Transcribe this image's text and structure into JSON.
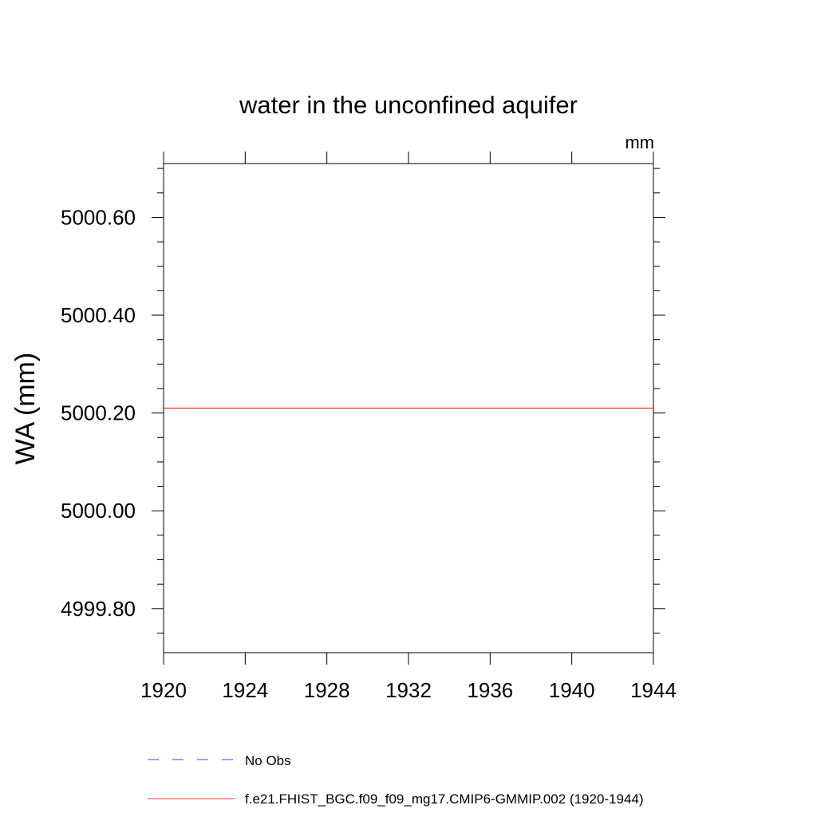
{
  "chart_data": {
    "type": "line",
    "title": "water in the unconfined aquifer",
    "units_label": "mm",
    "ylabel": "WA  (mm)",
    "xlabel": "",
    "xlim": [
      1920,
      1944
    ],
    "ylim": [
      4999.71,
      5000.71
    ],
    "x_ticks": [
      1920,
      1924,
      1928,
      1932,
      1936,
      1940,
      1944
    ],
    "x_tick_labels": [
      "1920",
      "1924",
      "1928",
      "1932",
      "1936",
      "1940",
      "1944"
    ],
    "y_ticks": [
      4999.8,
      5000.0,
      5000.2,
      5000.4,
      5000.6
    ],
    "y_tick_labels": [
      "4999.80",
      "5000.00",
      "5000.20",
      "5000.40",
      "5000.60"
    ],
    "y_minor_step": 0.05,
    "grid": false,
    "legend_placement": "bottom",
    "series": [
      {
        "name": "f.e21.FHIST_BGC.f09_f09_mg17.CMIP6-GMMIP.002 (1920-1944)",
        "color": "#ff0000",
        "style": "solid",
        "x": [
          1920,
          1944
        ],
        "y": [
          5000.21,
          5000.21
        ]
      }
    ],
    "legend": [
      {
        "label": "No Obs",
        "color": "#0000ff",
        "style": "dashed"
      },
      {
        "label": "f.e21.FHIST_BGC.f09_f09_mg17.CMIP6-GMMIP.002 (1920-1944)",
        "color": "#ff0000",
        "style": "solid"
      }
    ]
  }
}
